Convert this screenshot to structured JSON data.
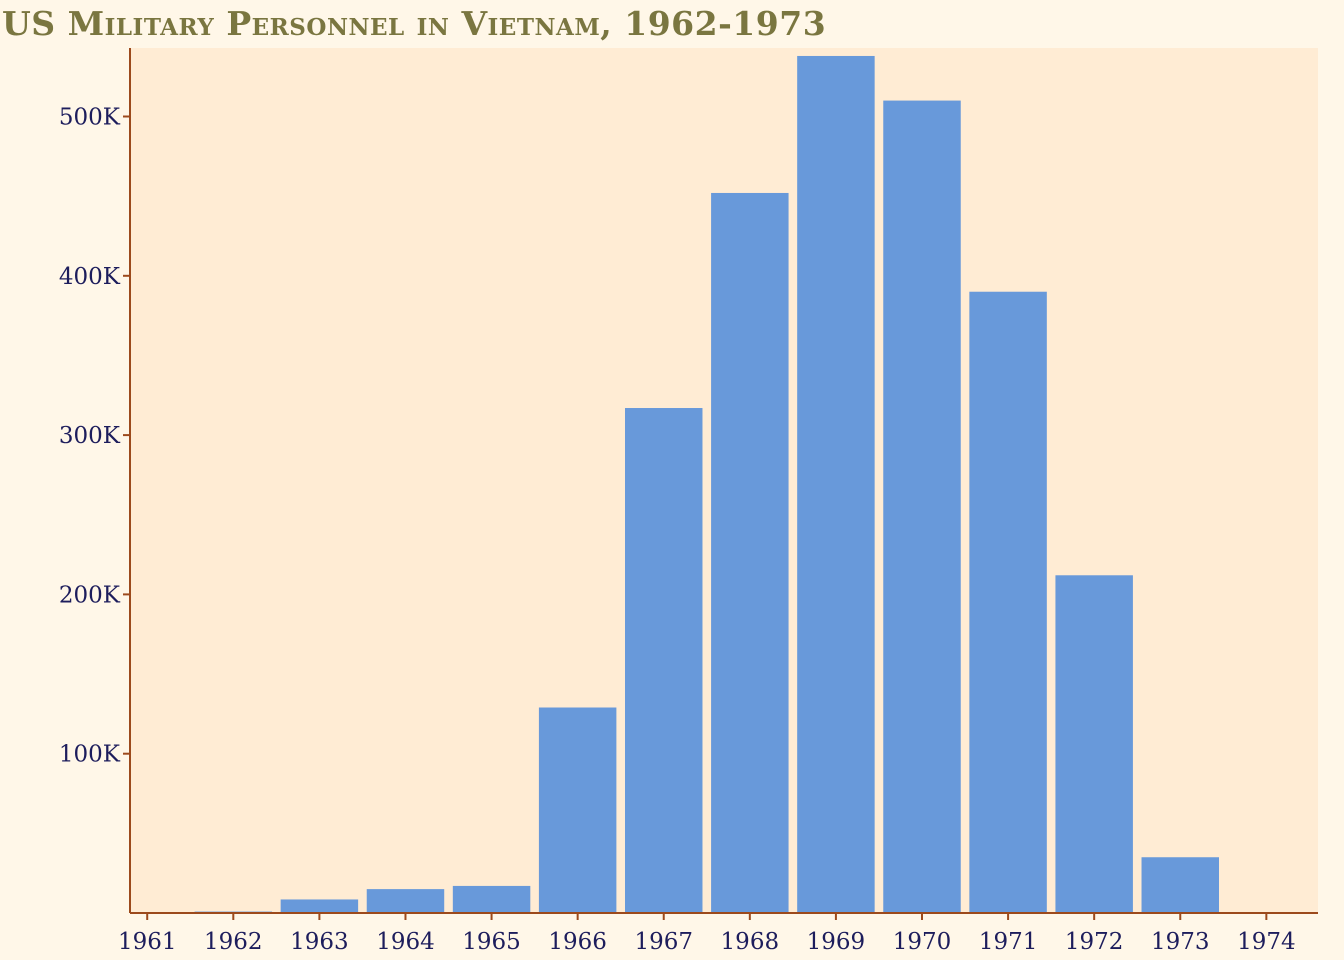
{
  "chart_data": {
    "type": "bar",
    "title": "US Military Personnel in Vietnam, 1962-1973",
    "categories": [
      "1962",
      "1963",
      "1964",
      "1965",
      "1966",
      "1967",
      "1968",
      "1969",
      "1970",
      "1971",
      "1972",
      "1973"
    ],
    "values": [
      900,
      8500,
      15000,
      17000,
      129000,
      317000,
      452000,
      538000,
      510000,
      390000,
      212000,
      35000
    ],
    "x_ticks": [
      "1961",
      "1962",
      "1963",
      "1964",
      "1965",
      "1966",
      "1967",
      "1968",
      "1969",
      "1970",
      "1971",
      "1972",
      "1973",
      "1974"
    ],
    "y_ticks": [
      {
        "value": 100000,
        "label": "100K"
      },
      {
        "value": 200000,
        "label": "200K"
      },
      {
        "value": 300000,
        "label": "300K"
      },
      {
        "value": 400000,
        "label": "400K"
      },
      {
        "value": 500000,
        "label": "500K"
      }
    ],
    "xlim": [
      1960.8,
      1974.6
    ],
    "ylim": [
      0,
      543000
    ],
    "xlabel": "",
    "ylabel": "",
    "grid": false,
    "legend": "none",
    "colors": {
      "bar": "#6899da",
      "plot_background": "#ffecd4",
      "page_background": "#fff7e8",
      "axis": "#9c4a1c",
      "tick_text": "#1d1d5c",
      "title": "#7a7640"
    }
  }
}
